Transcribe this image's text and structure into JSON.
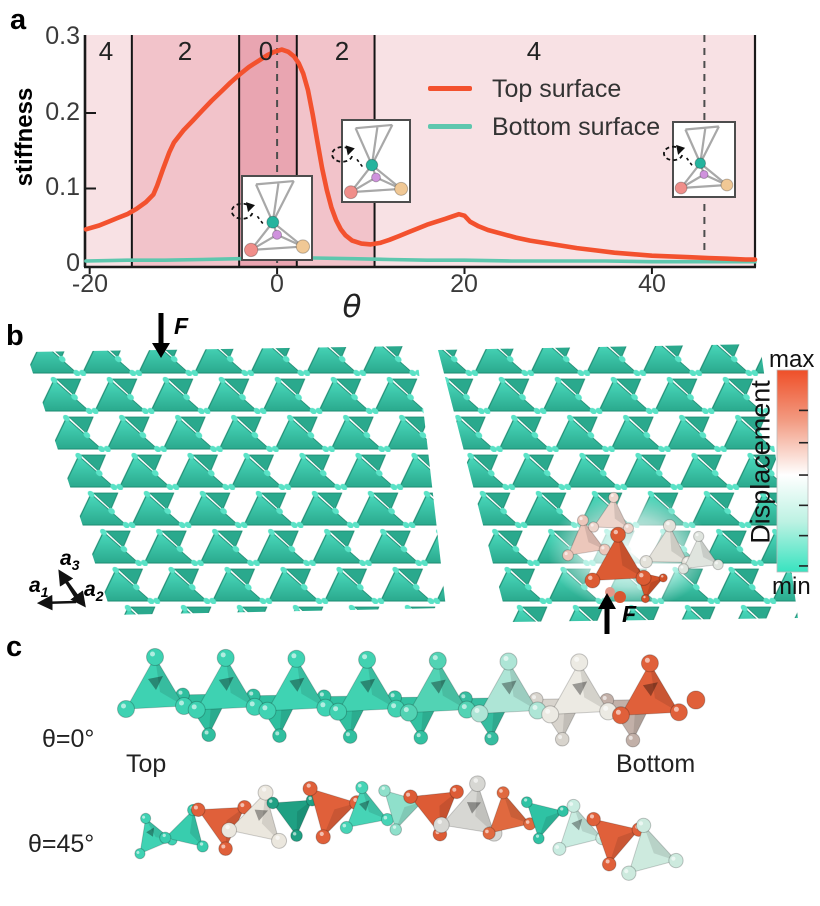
{
  "figure_title": "Surface stiffness figure",
  "chart_data": {
    "type": "line",
    "title": "",
    "xlabel": "θ",
    "ylabel": "stiffness",
    "xlim": [
      -20.5,
      51
    ],
    "ylim": [
      0,
      0.305
    ],
    "x_ticks": [
      -20,
      0,
      20,
      40
    ],
    "y_ticks": [
      0,
      0.1,
      0.2,
      0.3
    ],
    "grid": false,
    "legend_position": "upper right inside",
    "region_boundaries_theta": [
      -15.5,
      -4.05,
      2.1,
      10.4
    ],
    "dashed_lines_theta": [
      0,
      45.6
    ],
    "region_labels": [
      "4",
      "2",
      "0",
      "2",
      "4"
    ],
    "series": [
      {
        "name": "Top surface",
        "color": "#f3512e",
        "points": [
          [
            -20.4,
            0.046
          ],
          [
            -19,
            0.051
          ],
          [
            -18,
            0.056
          ],
          [
            -17,
            0.061
          ],
          [
            -16,
            0.066
          ],
          [
            -15,
            0.073
          ],
          [
            -14,
            0.082
          ],
          [
            -13.2,
            0.092
          ],
          [
            -12.8,
            0.104
          ],
          [
            -12.2,
            0.125
          ],
          [
            -11.5,
            0.148
          ],
          [
            -11,
            0.161
          ],
          [
            -10,
            0.177
          ],
          [
            -9,
            0.19
          ],
          [
            -8,
            0.203
          ],
          [
            -7,
            0.216
          ],
          [
            -6,
            0.228
          ],
          [
            -5,
            0.24
          ],
          [
            -4,
            0.251
          ],
          [
            -3,
            0.261
          ],
          [
            -2,
            0.269
          ],
          [
            -1,
            0.277
          ],
          [
            -0.3,
            0.281
          ],
          [
            0.5,
            0.284
          ],
          [
            1.2,
            0.281
          ],
          [
            1.8,
            0.275
          ],
          [
            2.3,
            0.266
          ],
          [
            2.8,
            0.252
          ],
          [
            3.3,
            0.23
          ],
          [
            3.8,
            0.198
          ],
          [
            4.3,
            0.162
          ],
          [
            4.8,
            0.127
          ],
          [
            5.3,
            0.098
          ],
          [
            5.8,
            0.075
          ],
          [
            6.3,
            0.058
          ],
          [
            6.8,
            0.046
          ],
          [
            7.3,
            0.038
          ],
          [
            8,
            0.031
          ],
          [
            9,
            0.027
          ],
          [
            10,
            0.026
          ],
          [
            11,
            0.028
          ],
          [
            12,
            0.032
          ],
          [
            13,
            0.037
          ],
          [
            14,
            0.042
          ],
          [
            15,
            0.047
          ],
          [
            16,
            0.052
          ],
          [
            17,
            0.056
          ],
          [
            18,
            0.06
          ],
          [
            18.7,
            0.063
          ],
          [
            19.4,
            0.066
          ],
          [
            20,
            0.064
          ],
          [
            20.6,
            0.056
          ],
          [
            21.5,
            0.05
          ],
          [
            22.5,
            0.045
          ],
          [
            24,
            0.04
          ],
          [
            25.5,
            0.035
          ],
          [
            27,
            0.031
          ],
          [
            28.5,
            0.028
          ],
          [
            30,
            0.025
          ],
          [
            32,
            0.021
          ],
          [
            34,
            0.018
          ],
          [
            36,
            0.015
          ],
          [
            38,
            0.013
          ],
          [
            40,
            0.011
          ],
          [
            42,
            0.01
          ],
          [
            44,
            0.009
          ],
          [
            46,
            0.008
          ],
          [
            48,
            0.007
          ],
          [
            50,
            0.006
          ],
          [
            51,
            0.006
          ]
        ]
      },
      {
        "name": "Bottom surface",
        "color": "#5ec7ae",
        "points": [
          [
            -20.4,
            0.004
          ],
          [
            -16,
            0.005
          ],
          [
            -12,
            0.005
          ],
          [
            -8,
            0.006
          ],
          [
            -4,
            0.007
          ],
          [
            0,
            0.008
          ],
          [
            4,
            0.008
          ],
          [
            8,
            0.007
          ],
          [
            12,
            0.006
          ],
          [
            16,
            0.005
          ],
          [
            20,
            0.005
          ],
          [
            25,
            0.004
          ],
          [
            30,
            0.004
          ],
          [
            35,
            0.004
          ],
          [
            40,
            0.003
          ],
          [
            45,
            0.003
          ],
          [
            51,
            0.003
          ]
        ]
      }
    ]
  },
  "panel_a": {
    "label": "a",
    "ylabel": "stiffness",
    "xlabel": "θ",
    "y_ticks": [
      "0.3",
      "0.2",
      "0.1",
      "0"
    ],
    "x_ticks": [
      "-20",
      "0",
      "20",
      "40"
    ],
    "regions": [
      {
        "label": "4",
        "shade": "light"
      },
      {
        "label": "2",
        "shade": "medium"
      },
      {
        "label": "0",
        "shade": "dark"
      },
      {
        "label": "2",
        "shade": "medium"
      },
      {
        "label": "4",
        "shade": "light"
      }
    ],
    "region_shades": {
      "light": "#f8e1e4",
      "medium": "#f2c3ca",
      "dark": "#e9a5b1"
    },
    "legend": [
      {
        "label": "Top surface",
        "color": "#f3512e"
      },
      {
        "label": "Bottom surface",
        "color": "#5ec7ae"
      }
    ],
    "inset_colors": {
      "wire": "#a8a8a8",
      "top_sphere": "#25b49e",
      "left_sphere": "#f08e8a",
      "right_sphere": "#f0c895",
      "mid_sphere": "#cf92dd"
    }
  },
  "panel_b": {
    "label": "b",
    "force_label": "F",
    "axes": [
      {
        "base": "a",
        "sub": "1"
      },
      {
        "base": "a",
        "sub": "2"
      },
      {
        "base": "a",
        "sub": "3"
      }
    ],
    "lattice": {
      "base_color": "#3ecdb0",
      "light_color": "#4adabd",
      "dark_color": "#2aa98d",
      "sphere_color": "#5ae2c6",
      "edge_color": "#1a8a70"
    },
    "displacement_hotspot_color": "#dc5b33",
    "colorbar": {
      "title": "Displacement",
      "max_label": "max",
      "min_label": "min",
      "stops": [
        "#ef4f28",
        "#f29b82",
        "#ffffff",
        "#bdf2e3",
        "#38e3c0"
      ]
    }
  },
  "panel_c": {
    "label": "c",
    "rows": [
      {
        "theta_label": "θ=0°",
        "left_caption": "Top",
        "right_caption": "Bottom",
        "top_tet_colors": [
          "#3ed2b2",
          "#3ed2b2",
          "#3fd3b3",
          "#41d2b1",
          "#52d3b4",
          "#aee5d6",
          "#eceae3",
          "#e0603a"
        ],
        "bottom_tet_colors": [
          "#2fbf9f",
          "#2fbf9f",
          "#30c0a0",
          "#32c1a1",
          "#36bda0",
          "#d8d4cd",
          "#c2b0a8"
        ],
        "end_sphere_color": "#e0603a"
      },
      {
        "theta_label": "θ=45°",
        "tets": [
          {
            "dir": "up",
            "color": "#3fd2b3",
            "size": 30
          },
          {
            "dir": "up",
            "color": "#38cdae",
            "size": 33
          },
          {
            "dir": "down",
            "color": "#e0603a",
            "size": 40
          },
          {
            "dir": "up",
            "color": "#ebe7de",
            "size": 44
          },
          {
            "dir": "down",
            "color": "#1fa083",
            "size": 34
          },
          {
            "dir": "down",
            "color": "#e0603a",
            "size": 42
          },
          {
            "dir": "up",
            "color": "#46d4b6",
            "size": 36
          },
          {
            "dir": "down",
            "color": "#8fe0cb",
            "size": 34
          },
          {
            "dir": "down",
            "color": "#dd5b35",
            "size": 40
          },
          {
            "dir": "up",
            "color": "#d7d7d3",
            "size": 46
          },
          {
            "dir": "up",
            "color": "#e0693f",
            "size": 36
          },
          {
            "dir": "down",
            "color": "#2fc3a4",
            "size": 32
          },
          {
            "dir": "up",
            "color": "#c9ece1",
            "size": 38
          },
          {
            "dir": "down",
            "color": "#e0603a",
            "size": 40
          },
          {
            "dir": "up",
            "color": "#cdeade",
            "size": 42
          }
        ]
      }
    ]
  }
}
